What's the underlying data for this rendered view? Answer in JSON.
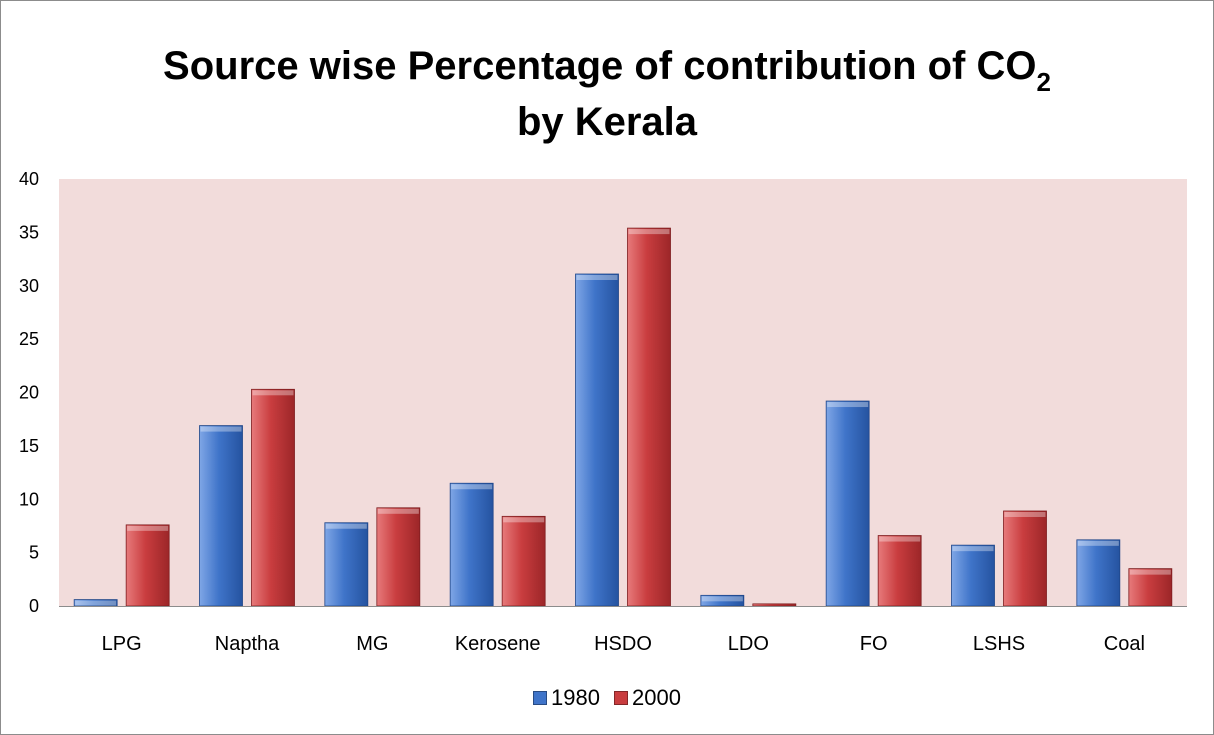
{
  "chart_data": {
    "type": "bar",
    "title_main": "Source wise Percentage of contribution of CO",
    "title_subscript": "2",
    "title_line2": "by Kerala",
    "categories": [
      "LPG",
      "Naptha",
      "MG",
      "Kerosene",
      "HSDO",
      "LDO",
      "FO",
      "LSHS",
      "Coal"
    ],
    "series": [
      {
        "name": "1980",
        "values": [
          0.6,
          16.9,
          7.8,
          11.5,
          31.1,
          1.0,
          19.2,
          5.7,
          6.2
        ],
        "color": "#3f74c9"
      },
      {
        "name": "2000",
        "values": [
          7.6,
          20.3,
          9.2,
          8.4,
          35.4,
          0.2,
          6.6,
          8.9,
          3.5
        ],
        "color": "#c93d3f"
      }
    ],
    "ylim": [
      0,
      40
    ],
    "yticks": [
      "0",
      "5",
      "10",
      "15",
      "20",
      "25",
      "30",
      "35",
      "40"
    ],
    "plot_background": "#f2dcdb",
    "grid": false,
    "legend_position": "bottom"
  }
}
